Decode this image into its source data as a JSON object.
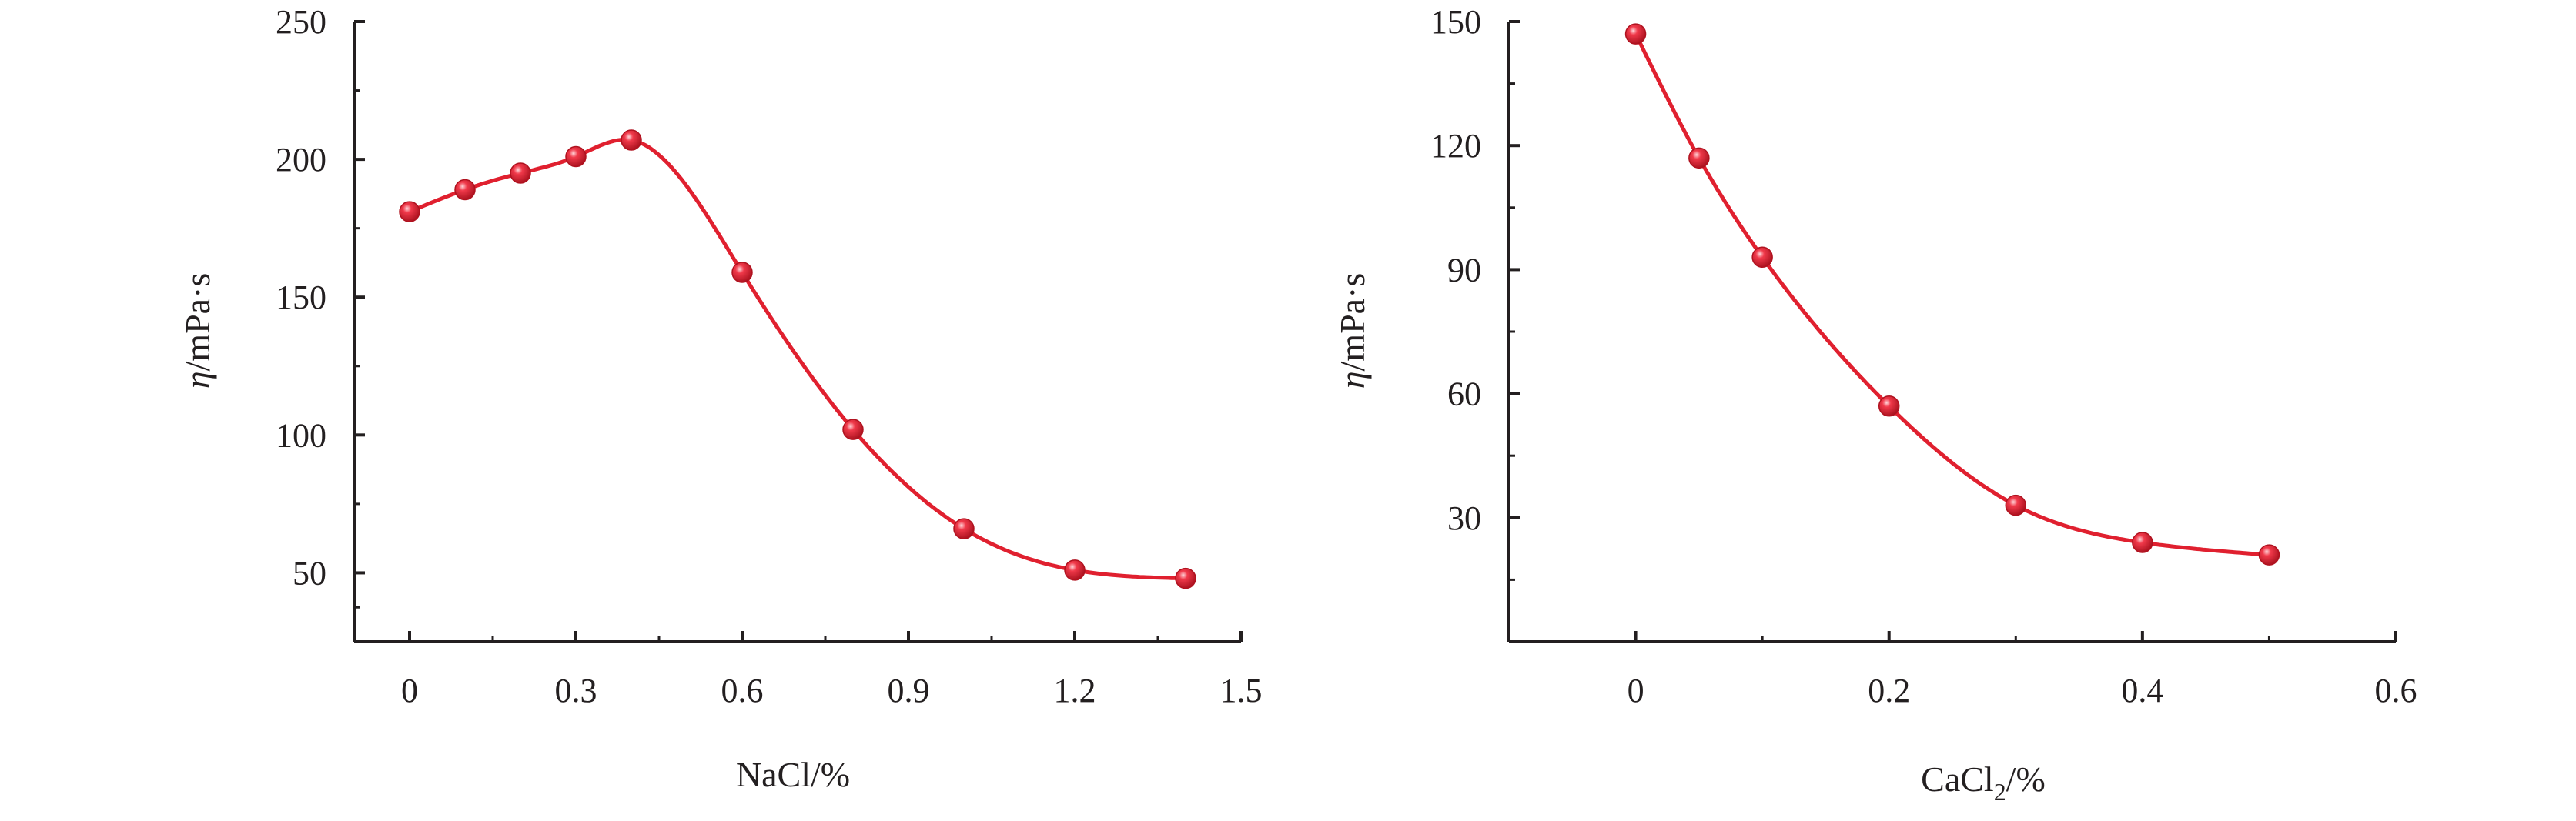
{
  "colors": {
    "series": "#e0202f",
    "axis": "#231f20"
  },
  "chart_data": [
    {
      "type": "scatter",
      "title": "",
      "xlabel": "NaCl/%",
      "ylabel_symbol": "η",
      "ylabel_unit": "/mPa·s",
      "xlim": [
        -0.1,
        1.5
      ],
      "ylim": [
        25,
        250
      ],
      "xticks": [
        0,
        0.3,
        0.6,
        0.9,
        1.2,
        1.5
      ],
      "xtick_labels": [
        "0",
        "0.3",
        "0.6",
        "0.9",
        "1.2",
        "1.5"
      ],
      "yticks": [
        50,
        100,
        150,
        200,
        250
      ],
      "ytick_labels": [
        "50",
        "100",
        "150",
        "200",
        "250"
      ],
      "grid": false,
      "series": [
        {
          "x": [
            0,
            0.1,
            0.2,
            0.3,
            0.4,
            0.6,
            0.8,
            1.0,
            1.2,
            1.4
          ],
          "y": [
            181,
            189,
            195,
            201,
            207,
            159,
            102,
            66,
            51,
            48
          ],
          "fit_curve": true
        }
      ]
    },
    {
      "type": "scatter",
      "title": "",
      "xlabel_main": "CaCl",
      "xlabel_sub": "2",
      "xlabel_suffix": "/%",
      "ylabel_symbol": "η",
      "ylabel_unit": "/mPa·s",
      "xlim": [
        -0.1,
        0.6
      ],
      "ylim": [
        0,
        150
      ],
      "xticks": [
        0,
        0.2,
        0.4,
        0.6
      ],
      "xtick_labels": [
        "0",
        "0.2",
        "0.4",
        "0.6"
      ],
      "yticks": [
        30,
        60,
        90,
        120,
        150
      ],
      "ytick_labels": [
        "30",
        "60",
        "90",
        "120",
        "150"
      ],
      "grid": false,
      "series": [
        {
          "x": [
            0,
            0.05,
            0.1,
            0.2,
            0.3,
            0.4,
            0.5
          ],
          "y": [
            147,
            117,
            93,
            57,
            33,
            24,
            21
          ],
          "fit_curve": true
        }
      ]
    }
  ]
}
